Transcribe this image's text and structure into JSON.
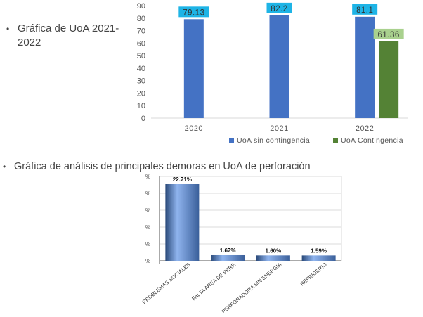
{
  "bullets": {
    "first": "Gráfica de UoA 2021-2022",
    "second": "Gráfica de análisis de principales demoras en UoA de perforación"
  },
  "chart_data": [
    {
      "type": "bar",
      "categories": [
        "2020",
        "2021",
        "2022"
      ],
      "series": [
        {
          "name": "UoA sin contingencia",
          "values": [
            79.13,
            82.2,
            81.1
          ],
          "color": "#4472C4",
          "label_bg": "#1EB4E6"
        },
        {
          "name": "UoA Contingencia",
          "values": [
            null,
            null,
            61.36
          ],
          "color": "#548235",
          "label_bg": "#A9D18E"
        }
      ],
      "data_labels": [
        [
          "79.13",
          "82.2",
          "81.1"
        ],
        [
          "",
          "",
          "61.36"
        ]
      ],
      "y_ticks": [
        "0",
        "10",
        "20",
        "30",
        "40",
        "50",
        "60",
        "70",
        "80",
        "90"
      ],
      "ylim": [
        0,
        90
      ],
      "legend_position": "bottom-right",
      "grid": false
    },
    {
      "type": "bar",
      "categories": [
        "PROBLEMAS SOCIALES",
        "FALTA AREA DE PERF.",
        "PERFORADORA SIN ENERGIA",
        "REFRIGERIO"
      ],
      "values": [
        22.71,
        1.67,
        1.6,
        1.59
      ],
      "data_labels": [
        "22.71%",
        "1.67%",
        "1.60%",
        "1.59%"
      ],
      "y_tick_labels": [
        "%",
        "%",
        "%",
        "%",
        "%",
        "%"
      ],
      "ylim": [
        0,
        25
      ],
      "bar_gradient": [
        "#2A4A7A",
        "#8FB4EE",
        "#3A5F9A"
      ],
      "grid": true
    }
  ]
}
